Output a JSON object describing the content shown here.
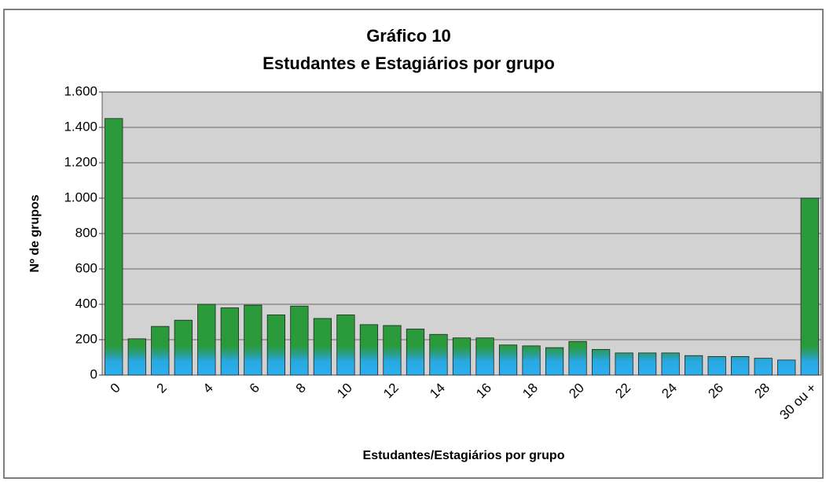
{
  "chart_data": {
    "type": "bar",
    "title": "Gráfico 10",
    "subtitle": "Estudantes e Estagiários por grupo",
    "x_label": "Estudantes/Estagiários por grupo",
    "y_label": "Nº de grupos",
    "categories": [
      "0",
      null,
      "2",
      null,
      "4",
      null,
      "6",
      null,
      "8",
      null,
      "10",
      null,
      "12",
      null,
      "14",
      null,
      "16",
      null,
      "18",
      null,
      "20",
      null,
      "22",
      null,
      "24",
      null,
      "26",
      null,
      "28",
      null,
      "30 ou +"
    ],
    "values": [
      1450,
      205,
      275,
      310,
      400,
      380,
      395,
      340,
      390,
      320,
      340,
      285,
      280,
      260,
      230,
      210,
      210,
      170,
      165,
      155,
      190,
      145,
      125,
      125,
      125,
      110,
      105,
      105,
      95,
      85,
      1000
    ],
    "color": "#2a9a3a",
    "ylim": [
      0,
      1600
    ],
    "yticks": [
      0,
      200,
      400,
      600,
      800,
      {
        "value": 1000,
        "label": "1.000"
      },
      {
        "value": 1200,
        "label": "1.200"
      },
      {
        "value": 1400,
        "label": "1.400"
      },
      {
        "value": 1600,
        "label": "1.600"
      }
    ],
    "grid": true
  }
}
